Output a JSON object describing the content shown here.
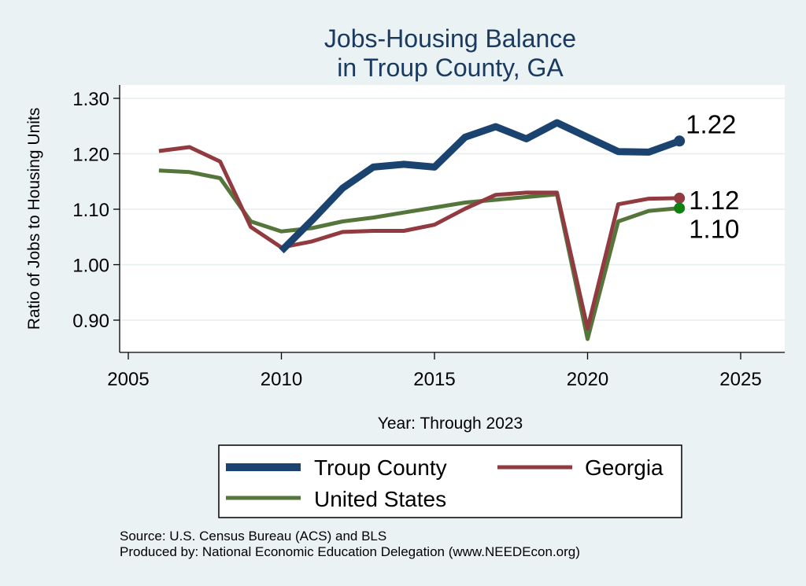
{
  "chart_data": {
    "type": "line",
    "title_lines": [
      "Jobs-Housing Balance",
      "in Troup County, GA"
    ],
    "xlabel": "Year: Through 2023",
    "ylabel": "Ratio of Jobs to Housing Units",
    "xlim": [
      2005,
      2027
    ],
    "ylim": [
      0.86,
      1.32
    ],
    "xticks": [
      2005,
      2010,
      2015,
      2020,
      2025
    ],
    "yticks": [
      0.9,
      1.0,
      1.1,
      1.2,
      1.3
    ],
    "ytick_labels": [
      "0.90",
      "1.00",
      "1.10",
      "1.20",
      "1.30"
    ],
    "grid": true,
    "legend_position": "bottom",
    "x": [
      2006,
      2007,
      2008,
      2009,
      2010,
      2011,
      2012,
      2013,
      2014,
      2015,
      2016,
      2017,
      2018,
      2019,
      2020,
      2021,
      2022,
      2023
    ],
    "series": [
      {
        "name": "Troup County",
        "color": "#1b4370",
        "x": [
          2010,
          2011,
          2012,
          2013,
          2014,
          2015,
          2016,
          2017,
          2018,
          2019,
          2020,
          2021,
          2022,
          2023
        ],
        "values": [
          1.025,
          1.08,
          1.138,
          1.176,
          1.181,
          1.176,
          1.23,
          1.249,
          1.227,
          1.256,
          1.23,
          1.204,
          1.203,
          1.223
        ],
        "end_label": "1.22"
      },
      {
        "name": "Georgia",
        "color": "#913b41",
        "x": [
          2006,
          2007,
          2008,
          2009,
          2010,
          2011,
          2012,
          2013,
          2014,
          2015,
          2016,
          2017,
          2018,
          2019,
          2020,
          2021,
          2022,
          2023
        ],
        "values": [
          1.205,
          1.212,
          1.186,
          1.068,
          1.031,
          1.042,
          1.059,
          1.061,
          1.061,
          1.072,
          1.101,
          1.126,
          1.13,
          1.13,
          0.885,
          1.109,
          1.119,
          1.12
        ],
        "end_label": "1.12"
      },
      {
        "name": "United States",
        "color": "#55763a",
        "x": [
          2006,
          2007,
          2008,
          2009,
          2010,
          2011,
          2012,
          2013,
          2014,
          2015,
          2016,
          2017,
          2018,
          2019,
          2020,
          2021,
          2022,
          2023
        ],
        "values": [
          1.17,
          1.167,
          1.156,
          1.078,
          1.06,
          1.066,
          1.078,
          1.085,
          1.094,
          1.103,
          1.112,
          1.117,
          1.122,
          1.127,
          0.866,
          1.078,
          1.097,
          1.102
        ],
        "end_label": "1.10"
      }
    ]
  },
  "source_lines": [
    "Source: U.S. Census Bureau (ACS) and BLS",
    "Produced by: National Economic Education Delegation (www.NEEDEcon.org)"
  ]
}
